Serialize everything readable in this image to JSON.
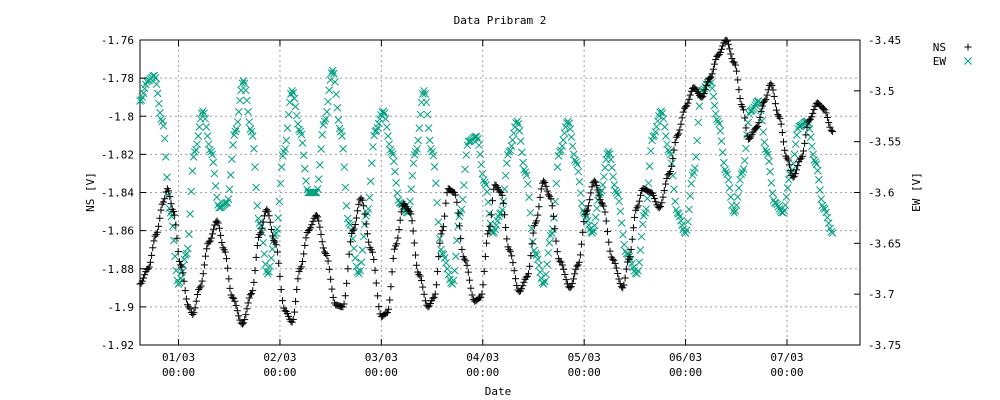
{
  "chart_data": {
    "type": "scatter",
    "title": "Data Pribram 2",
    "xlabel": "Date",
    "ylabel": "NS [V]",
    "y2label": "EW [V]",
    "xlim": [
      0.62,
      7.72
    ],
    "ylim": [
      -1.92,
      -1.76
    ],
    "y2lim": [
      -3.75,
      -3.45
    ],
    "x_ticks": [
      {
        "x": 1,
        "line1": "01/03",
        "line2": "00:00"
      },
      {
        "x": 2,
        "line1": "02/03",
        "line2": "00:00"
      },
      {
        "x": 3,
        "line1": "03/03",
        "line2": "00:00"
      },
      {
        "x": 4,
        "line1": "04/03",
        "line2": "00:00"
      },
      {
        "x": 5,
        "line1": "05/03",
        "line2": "00:00"
      },
      {
        "x": 6,
        "line1": "06/03",
        "line2": "00:00"
      },
      {
        "x": 7,
        "line1": "07/03",
        "line2": "00:00"
      }
    ],
    "y_ticks": [
      {
        "v": -1.76,
        "label": "-1.76"
      },
      {
        "v": -1.78,
        "label": "-1.78"
      },
      {
        "v": -1.8,
        "label": "-1.8"
      },
      {
        "v": -1.82,
        "label": "-1.82"
      },
      {
        "v": -1.84,
        "label": "-1.84"
      },
      {
        "v": -1.86,
        "label": "-1.86"
      },
      {
        "v": -1.88,
        "label": "-1.88"
      },
      {
        "v": -1.9,
        "label": "-1.9"
      },
      {
        "v": -1.92,
        "label": "-1.92"
      }
    ],
    "y2_ticks": [
      {
        "v": -3.45,
        "label": "-3.45"
      },
      {
        "v": -3.5,
        "label": "-3.5"
      },
      {
        "v": -3.55,
        "label": "-3.55"
      },
      {
        "v": -3.6,
        "label": "-3.6"
      },
      {
        "v": -3.65,
        "label": "-3.65"
      },
      {
        "v": -3.7,
        "label": "-3.7"
      },
      {
        "v": -3.75,
        "label": "-3.75"
      }
    ],
    "legend": {
      "position": "top-right",
      "entries": [
        {
          "name": "NS",
          "marker": "+",
          "color": "#000000"
        },
        {
          "name": "EW",
          "marker": "×",
          "color": "#00a080"
        }
      ]
    },
    "series": [
      {
        "name": "NS",
        "axis": "y",
        "marker": "plus",
        "color": "#000000",
        "points": [
          [
            0.62,
            -1.888
          ],
          [
            0.7,
            -1.88
          ],
          [
            0.78,
            -1.862
          ],
          [
            0.85,
            -1.845
          ],
          [
            0.89,
            -1.838
          ],
          [
            0.95,
            -1.85
          ],
          [
            1.02,
            -1.878
          ],
          [
            1.1,
            -1.9
          ],
          [
            1.14,
            -1.904
          ],
          [
            1.21,
            -1.89
          ],
          [
            1.3,
            -1.866
          ],
          [
            1.38,
            -1.855
          ],
          [
            1.45,
            -1.87
          ],
          [
            1.53,
            -1.895
          ],
          [
            1.63,
            -1.909
          ],
          [
            1.72,
            -1.893
          ],
          [
            1.8,
            -1.862
          ],
          [
            1.87,
            -1.849
          ],
          [
            1.95,
            -1.866
          ],
          [
            2.05,
            -1.902
          ],
          [
            2.12,
            -1.908
          ],
          [
            2.2,
            -1.88
          ],
          [
            2.28,
            -1.86
          ],
          [
            2.36,
            -1.852
          ],
          [
            2.45,
            -1.872
          ],
          [
            2.55,
            -1.899
          ],
          [
            2.62,
            -1.9
          ],
          [
            2.72,
            -1.86
          ],
          [
            2.8,
            -1.843
          ],
          [
            2.9,
            -1.87
          ],
          [
            3.0,
            -1.905
          ],
          [
            3.06,
            -1.903
          ],
          [
            3.14,
            -1.868
          ],
          [
            3.22,
            -1.846
          ],
          [
            3.28,
            -1.85
          ],
          [
            3.37,
            -1.883
          ],
          [
            3.46,
            -1.9
          ],
          [
            3.52,
            -1.895
          ],
          [
            3.6,
            -1.86
          ],
          [
            3.66,
            -1.838
          ],
          [
            3.72,
            -1.84
          ],
          [
            3.82,
            -1.875
          ],
          [
            3.92,
            -1.897
          ],
          [
            3.98,
            -1.895
          ],
          [
            4.06,
            -1.86
          ],
          [
            4.12,
            -1.836
          ],
          [
            4.18,
            -1.84
          ],
          [
            4.26,
            -1.87
          ],
          [
            4.36,
            -1.892
          ],
          [
            4.44,
            -1.884
          ],
          [
            4.52,
            -1.856
          ],
          [
            4.6,
            -1.834
          ],
          [
            4.66,
            -1.842
          ],
          [
            4.76,
            -1.876
          ],
          [
            4.86,
            -1.89
          ],
          [
            4.94,
            -1.878
          ],
          [
            5.02,
            -1.85
          ],
          [
            5.1,
            -1.834
          ],
          [
            5.18,
            -1.846
          ],
          [
            5.28,
            -1.875
          ],
          [
            5.38,
            -1.89
          ],
          [
            5.44,
            -1.875
          ],
          [
            5.52,
            -1.848
          ],
          [
            5.58,
            -1.838
          ],
          [
            5.66,
            -1.84
          ],
          [
            5.74,
            -1.848
          ],
          [
            5.84,
            -1.83
          ],
          [
            5.92,
            -1.81
          ],
          [
            6.0,
            -1.795
          ],
          [
            6.08,
            -1.785
          ],
          [
            6.16,
            -1.79
          ],
          [
            6.24,
            -1.78
          ],
          [
            6.32,
            -1.768
          ],
          [
            6.4,
            -1.76
          ],
          [
            6.48,
            -1.772
          ],
          [
            6.56,
            -1.795
          ],
          [
            6.62,
            -1.812
          ],
          [
            6.7,
            -1.806
          ],
          [
            6.78,
            -1.792
          ],
          [
            6.84,
            -1.783
          ],
          [
            6.92,
            -1.8
          ],
          [
            7.0,
            -1.822
          ],
          [
            7.06,
            -1.832
          ],
          [
            7.14,
            -1.822
          ],
          [
            7.22,
            -1.802
          ],
          [
            7.3,
            -1.793
          ],
          [
            7.36,
            -1.796
          ],
          [
            7.45,
            -1.808
          ]
        ]
      },
      {
        "name": "EW",
        "axis": "y2",
        "marker": "cross",
        "color": "#00a080",
        "points": [
          [
            0.62,
            -3.51
          ],
          [
            0.7,
            -3.49
          ],
          [
            0.76,
            -3.485
          ],
          [
            0.84,
            -3.53
          ],
          [
            0.92,
            -3.62
          ],
          [
            1.0,
            -3.69
          ],
          [
            1.08,
            -3.66
          ],
          [
            1.16,
            -3.56
          ],
          [
            1.24,
            -3.52
          ],
          [
            1.32,
            -3.56
          ],
          [
            1.4,
            -3.615
          ],
          [
            1.48,
            -3.61
          ],
          [
            1.56,
            -3.54
          ],
          [
            1.64,
            -3.49
          ],
          [
            1.72,
            -3.54
          ],
          [
            1.8,
            -3.63
          ],
          [
            1.88,
            -3.68
          ],
          [
            1.96,
            -3.64
          ],
          [
            2.04,
            -3.56
          ],
          [
            2.12,
            -3.5
          ],
          [
            2.2,
            -3.54
          ],
          [
            2.28,
            -3.6
          ],
          [
            2.36,
            -3.6
          ],
          [
            2.44,
            -3.53
          ],
          [
            2.52,
            -3.48
          ],
          [
            2.6,
            -3.54
          ],
          [
            2.68,
            -3.63
          ],
          [
            2.78,
            -3.68
          ],
          [
            2.86,
            -3.62
          ],
          [
            2.94,
            -3.54
          ],
          [
            3.02,
            -3.52
          ],
          [
            3.1,
            -3.56
          ],
          [
            3.18,
            -3.61
          ],
          [
            3.26,
            -3.62
          ],
          [
            3.34,
            -3.56
          ],
          [
            3.42,
            -3.5
          ],
          [
            3.5,
            -3.56
          ],
          [
            3.6,
            -3.66
          ],
          [
            3.7,
            -3.69
          ],
          [
            3.78,
            -3.62
          ],
          [
            3.86,
            -3.55
          ],
          [
            3.94,
            -3.545
          ],
          [
            4.02,
            -3.59
          ],
          [
            4.1,
            -3.64
          ],
          [
            4.18,
            -3.62
          ],
          [
            4.26,
            -3.56
          ],
          [
            4.34,
            -3.53
          ],
          [
            4.42,
            -3.58
          ],
          [
            4.52,
            -3.66
          ],
          [
            4.6,
            -3.69
          ],
          [
            4.68,
            -3.64
          ],
          [
            4.76,
            -3.56
          ],
          [
            4.84,
            -3.53
          ],
          [
            4.92,
            -3.57
          ],
          [
            5.0,
            -3.62
          ],
          [
            5.08,
            -3.64
          ],
          [
            5.16,
            -3.6
          ],
          [
            5.24,
            -3.56
          ],
          [
            5.32,
            -3.6
          ],
          [
            5.42,
            -3.66
          ],
          [
            5.52,
            -3.68
          ],
          [
            5.6,
            -3.62
          ],
          [
            5.68,
            -3.545
          ],
          [
            5.76,
            -3.52
          ],
          [
            5.84,
            -3.56
          ],
          [
            5.92,
            -3.62
          ],
          [
            6.0,
            -3.64
          ],
          [
            6.08,
            -3.58
          ],
          [
            6.16,
            -3.5
          ],
          [
            6.24,
            -3.49
          ],
          [
            6.32,
            -3.53
          ],
          [
            6.4,
            -3.58
          ],
          [
            6.48,
            -3.62
          ],
          [
            6.56,
            -3.58
          ],
          [
            6.64,
            -3.52
          ],
          [
            6.72,
            -3.51
          ],
          [
            6.8,
            -3.56
          ],
          [
            6.88,
            -3.61
          ],
          [
            6.96,
            -3.62
          ],
          [
            7.04,
            -3.58
          ],
          [
            7.12,
            -3.535
          ],
          [
            7.2,
            -3.53
          ],
          [
            7.28,
            -3.57
          ],
          [
            7.36,
            -3.615
          ],
          [
            7.45,
            -3.64
          ]
        ]
      }
    ]
  }
}
